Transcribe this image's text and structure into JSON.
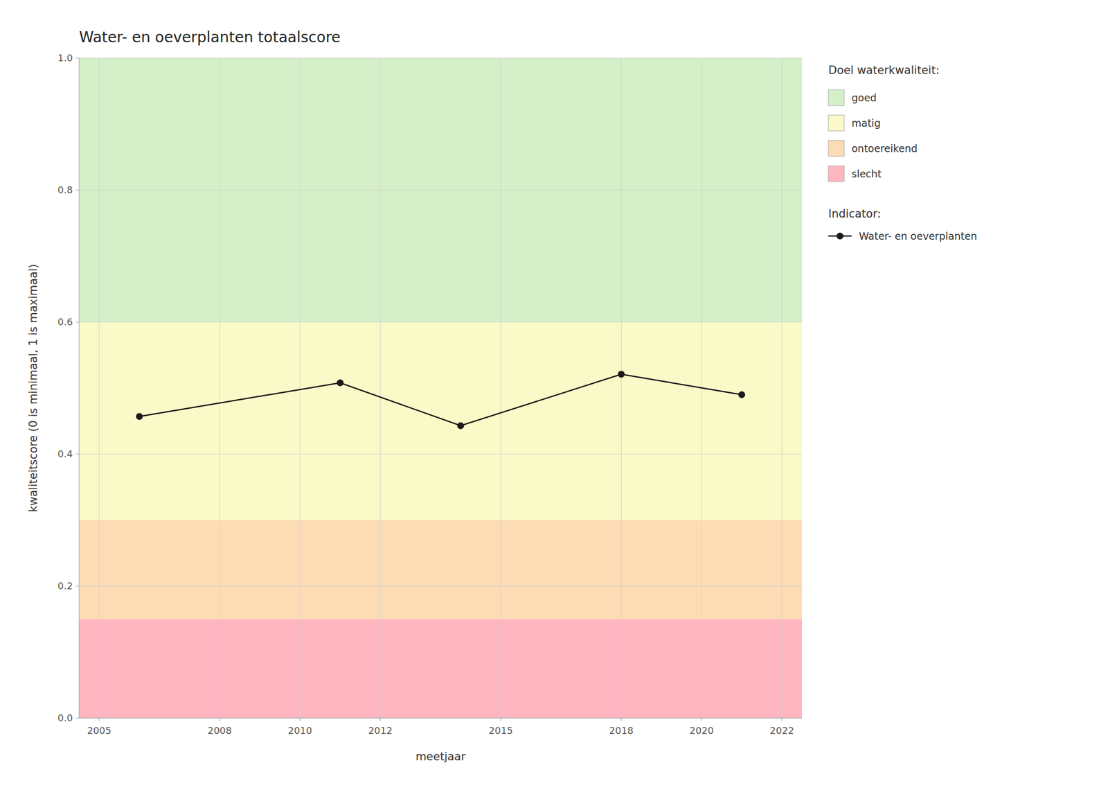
{
  "chart_data": {
    "type": "line",
    "title": "Water- en oeverplanten totaalscore",
    "x_label": "meetjaar",
    "y_label": "kwaliteitscore (0 is minimaal, 1 is maximaal)",
    "x": [
      2006,
      2011,
      2014,
      2018,
      2021
    ],
    "series": [
      {
        "name": "Water- en oeverplanten",
        "color": "#1a1a1a",
        "marker": "circle",
        "line_style": "solid",
        "values": [
          0.457,
          0.508,
          0.443,
          0.521,
          0.49
        ]
      }
    ],
    "xlim": [
      2004.5,
      2022.5
    ],
    "ylim": [
      0.0,
      1.0
    ],
    "xticks": [
      2005,
      2008,
      2010,
      2012,
      2015,
      2018,
      2020,
      2022
    ],
    "yticks": [
      {
        "value": 0.0,
        "label": "0.0"
      },
      0.2,
      0.4,
      0.6,
      0.8,
      {
        "value": 1.0,
        "label": "1.0"
      }
    ],
    "grid": true,
    "legend": "right",
    "legend_title_zones": "Doel waterkwaliteit:",
    "legend_title_series": "Indicator:",
    "zones": [
      {
        "name": "slecht",
        "from": 0.0,
        "to": 0.15,
        "color": "#FFB6C1"
      },
      {
        "name": "ontoereikend",
        "from": 0.15,
        "to": 0.3,
        "color": "#FDDCB5"
      },
      {
        "name": "matig",
        "from": 0.3,
        "to": 0.6,
        "color": "#FAFAC8"
      },
      {
        "name": "goed",
        "from": 0.6,
        "to": 1.0,
        "color": "#D5F0C8"
      }
    ]
  }
}
